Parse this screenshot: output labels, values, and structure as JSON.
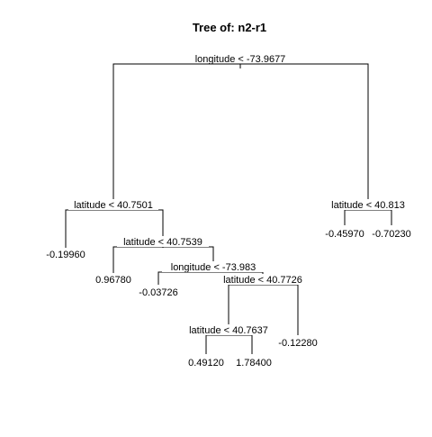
{
  "title": "Tree of: n2-r1",
  "splits": {
    "root": "longitude < -73.9677",
    "lat1": "latitude < 40.7501",
    "lat_r": "latitude < 40.813",
    "lat2": "latitude < 40.7539",
    "lon2": "longitude < -73.983",
    "lat3": "latitude < 40.7726",
    "lat4": "latitude < 40.7637"
  },
  "leaves": {
    "l1": "-0.19960",
    "l2": "0.96780",
    "l3": "-0.03726",
    "l4": "0.49120",
    "l5": "1.78400",
    "l6": "-0.12280",
    "r1": "-0.45970",
    "r2": "-0.70230"
  }
}
